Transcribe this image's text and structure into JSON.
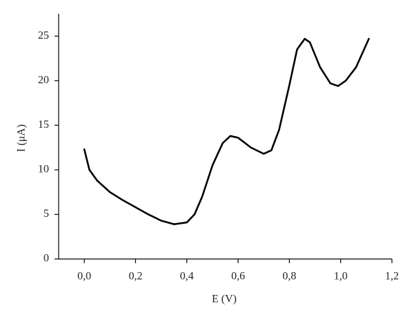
{
  "chart_data": {
    "type": "line",
    "x_label": "E (V)",
    "y_label": "I (μA)",
    "x": [
      0.0,
      0.02,
      0.05,
      0.1,
      0.15,
      0.2,
      0.25,
      0.3,
      0.35,
      0.4,
      0.43,
      0.46,
      0.5,
      0.54,
      0.57,
      0.6,
      0.65,
      0.7,
      0.73,
      0.76,
      0.8,
      0.83,
      0.86,
      0.88,
      0.92,
      0.96,
      0.99,
      1.02,
      1.06,
      1.11
    ],
    "series": [
      {
        "color": "#000000",
        "values": [
          12.3,
          10.0,
          8.8,
          7.5,
          6.6,
          5.8,
          5.0,
          4.3,
          3.9,
          4.1,
          5.0,
          7.0,
          10.5,
          13.0,
          13.8,
          13.6,
          12.5,
          11.8,
          12.2,
          14.5,
          19.5,
          23.5,
          24.7,
          24.3,
          21.5,
          19.7,
          19.4,
          20.0,
          21.5,
          24.7
        ]
      }
    ],
    "xlim": [
      -0.1,
      1.2
    ],
    "xticks": [
      {
        "value": 0.0,
        "label": "0,0"
      },
      {
        "value": 0.2,
        "label": "0,2"
      },
      {
        "value": 0.4,
        "label": "0,4"
      },
      {
        "value": 0.6,
        "label": "0,6"
      },
      {
        "value": 0.8,
        "label": "0,8"
      },
      {
        "value": 1.0,
        "label": "1,0"
      },
      {
        "value": 1.2,
        "label": "1,2"
      }
    ],
    "ylim": [
      0,
      27.5
    ],
    "yticks": [
      0,
      5,
      10,
      15,
      20,
      25
    ]
  }
}
